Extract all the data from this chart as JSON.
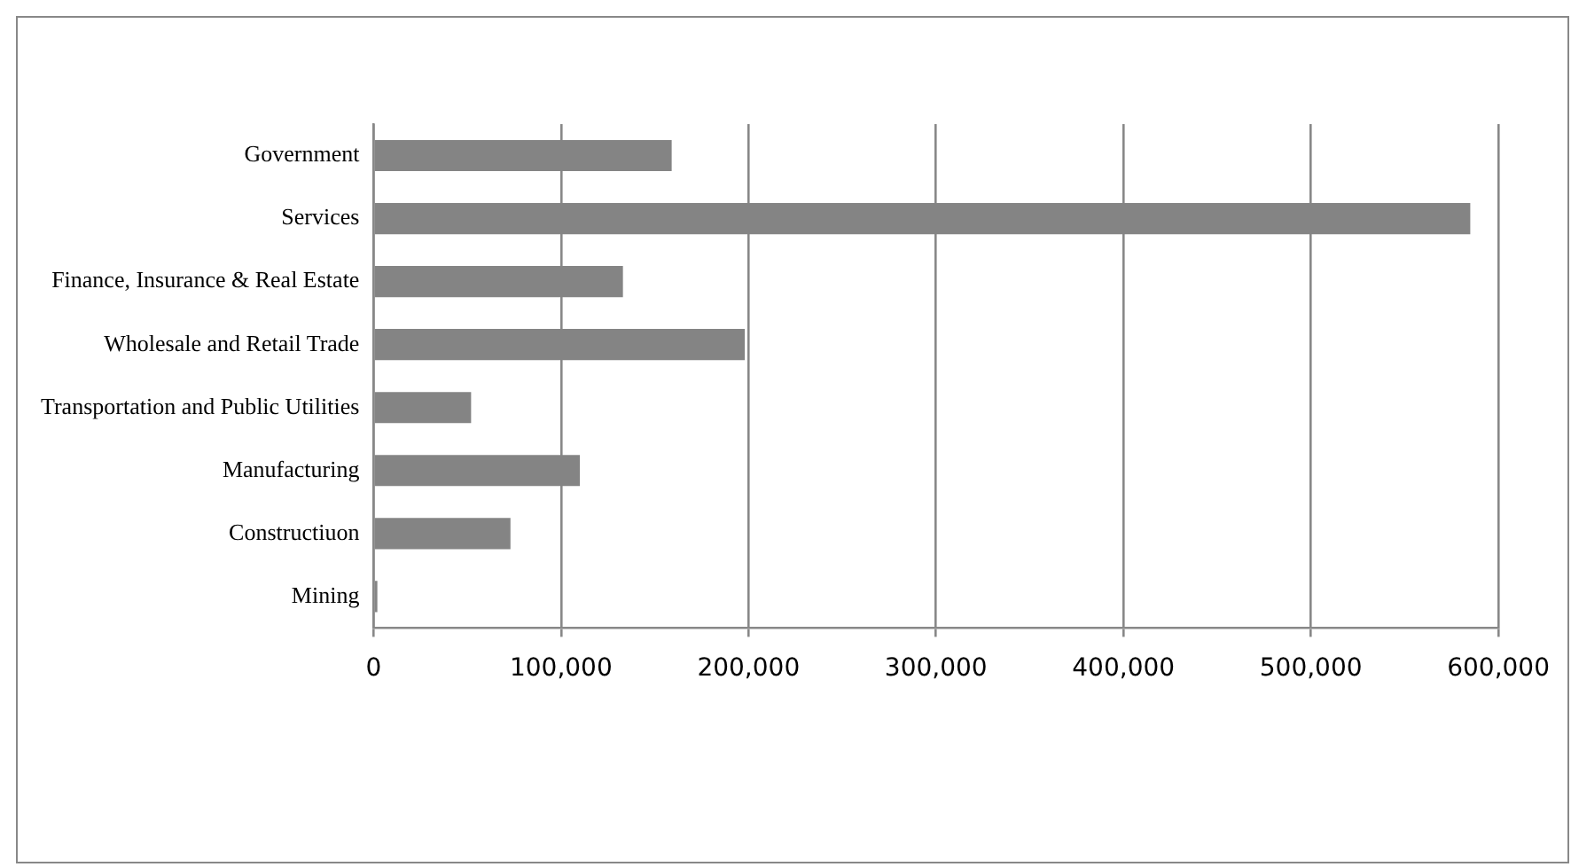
{
  "chart_data": {
    "type": "bar",
    "orientation": "horizontal",
    "categories": [
      "Government",
      "Services",
      "Finance, Insurance & Real Estate",
      "Wholesale and Retail Trade",
      "Transportation and Public Utilities",
      "Manufacturing",
      "Constructiuon",
      "Mining"
    ],
    "values": [
      159000,
      585000,
      133000,
      198000,
      52000,
      110000,
      73000,
      2000
    ],
    "color": "#848484",
    "xlim": [
      0,
      600000
    ],
    "xticks": [
      {
        "value": 0,
        "label": "0"
      },
      {
        "value": 100000,
        "label": "100,000"
      },
      {
        "value": 200000,
        "label": "200,000"
      },
      {
        "value": 300000,
        "label": "300,000"
      },
      {
        "value": 400000,
        "label": "400,000"
      },
      {
        "value": 500000,
        "label": "500,000"
      },
      {
        "value": 600000,
        "label": "600,000"
      }
    ],
    "grid": "x",
    "legend": false
  }
}
